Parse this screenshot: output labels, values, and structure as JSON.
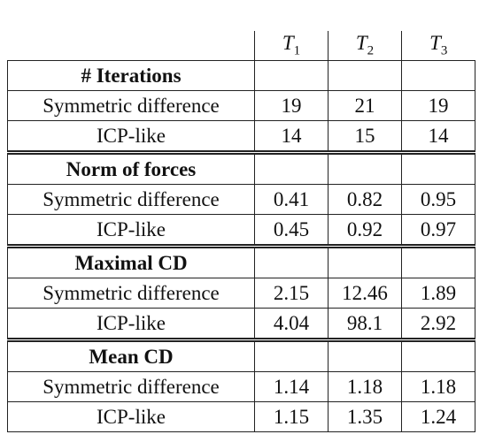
{
  "table": {
    "columns": [
      {
        "symbol": "T",
        "sub": "1"
      },
      {
        "symbol": "T",
        "sub": "2"
      },
      {
        "symbol": "T",
        "sub": "3"
      }
    ],
    "sections": [
      {
        "title": "# Iterations",
        "rows": [
          {
            "label": "Symmetric difference",
            "values": [
              "19",
              "21",
              "19"
            ]
          },
          {
            "label": "ICP-like",
            "values": [
              "14",
              "15",
              "14"
            ]
          }
        ]
      },
      {
        "title": "Norm of forces",
        "rows": [
          {
            "label": "Symmetric difference",
            "values": [
              "0.41",
              "0.82",
              "0.95"
            ]
          },
          {
            "label": "ICP-like",
            "values": [
              "0.45",
              "0.92",
              "0.97"
            ]
          }
        ]
      },
      {
        "title": "Maximal CD",
        "rows": [
          {
            "label": "Symmetric difference",
            "values": [
              "2.15",
              "12.46",
              "1.89"
            ]
          },
          {
            "label": "ICP-like",
            "values": [
              "4.04",
              "98.1",
              "2.92"
            ]
          }
        ]
      },
      {
        "title": "Mean CD",
        "rows": [
          {
            "label": "Symmetric difference",
            "values": [
              "1.14",
              "1.18",
              "1.18"
            ]
          },
          {
            "label": "ICP-like",
            "values": [
              "1.15",
              "1.35",
              "1.24"
            ]
          }
        ]
      }
    ]
  }
}
